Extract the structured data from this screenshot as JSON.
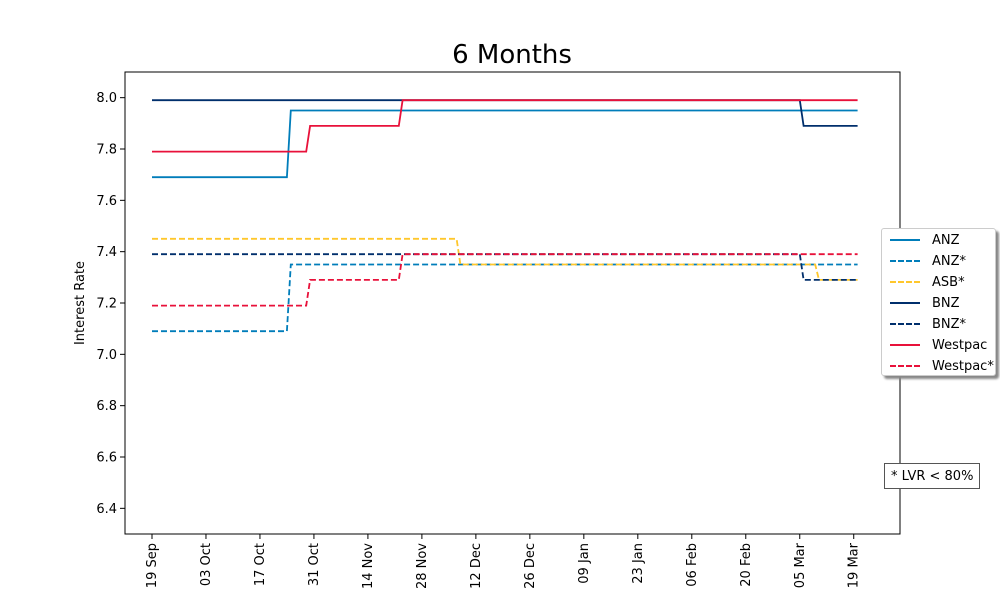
{
  "chart_data": {
    "type": "line",
    "title": "6 Months",
    "xlabel": "",
    "ylabel": "Interest Rate",
    "xlim": [
      "2023-09-12",
      "2024-03-31"
    ],
    "ylim": [
      6.3,
      8.1
    ],
    "yticks": [
      6.4,
      6.6,
      6.8,
      7.0,
      7.2,
      7.4,
      7.6,
      7.8,
      8.0
    ],
    "xticks": [
      {
        "date": "2023-09-19",
        "label": "19 Sep"
      },
      {
        "date": "2023-10-03",
        "label": "03 Oct"
      },
      {
        "date": "2023-10-17",
        "label": "17 Oct"
      },
      {
        "date": "2023-10-31",
        "label": "31 Oct"
      },
      {
        "date": "2023-11-14",
        "label": "14 Nov"
      },
      {
        "date": "2023-11-28",
        "label": "28 Nov"
      },
      {
        "date": "2023-12-12",
        "label": "12 Dec"
      },
      {
        "date": "2023-12-26",
        "label": "26 Dec"
      },
      {
        "date": "2024-01-09",
        "label": "09 Jan"
      },
      {
        "date": "2024-01-23",
        "label": "23 Jan"
      },
      {
        "date": "2024-02-06",
        "label": "06 Feb"
      },
      {
        "date": "2024-02-20",
        "label": "20 Feb"
      },
      {
        "date": "2024-03-05",
        "label": "05 Mar"
      },
      {
        "date": "2024-03-19",
        "label": "19 Mar"
      }
    ],
    "grid": false,
    "legend_position": "right",
    "series": [
      {
        "name": "ANZ",
        "color": "#007dba",
        "dash": false,
        "points": [
          [
            "2023-09-19",
            7.69
          ],
          [
            "2023-10-24",
            7.69
          ],
          [
            "2023-10-25",
            7.95
          ],
          [
            "2024-03-20",
            7.95
          ]
        ]
      },
      {
        "name": "ANZ*",
        "color": "#007dba",
        "dash": true,
        "points": [
          [
            "2023-09-19",
            7.09
          ],
          [
            "2023-10-24",
            7.09
          ],
          [
            "2023-10-25",
            7.35
          ],
          [
            "2024-03-20",
            7.35
          ]
        ]
      },
      {
        "name": "ASB*",
        "color": "#ffc72c",
        "dash": true,
        "points": [
          [
            "2023-09-19",
            7.45
          ],
          [
            "2023-12-07",
            7.45
          ],
          [
            "2023-12-08",
            7.35
          ],
          [
            "2024-03-09",
            7.35
          ],
          [
            "2024-03-10",
            7.29
          ],
          [
            "2024-03-20",
            7.29
          ]
        ]
      },
      {
        "name": "BNZ",
        "color": "#002f6c",
        "dash": false,
        "points": [
          [
            "2023-09-19",
            7.99
          ],
          [
            "2024-03-05",
            7.99
          ],
          [
            "2024-03-06",
            7.89
          ],
          [
            "2024-03-20",
            7.89
          ]
        ]
      },
      {
        "name": "BNZ*",
        "color": "#002f6c",
        "dash": true,
        "points": [
          [
            "2023-09-19",
            7.39
          ],
          [
            "2024-03-05",
            7.39
          ],
          [
            "2024-03-06",
            7.29
          ],
          [
            "2024-03-20",
            7.29
          ]
        ]
      },
      {
        "name": "Westpac",
        "color": "#e8113a",
        "dash": false,
        "points": [
          [
            "2023-09-19",
            7.79
          ],
          [
            "2023-10-29",
            7.79
          ],
          [
            "2023-10-30",
            7.89
          ],
          [
            "2023-11-22",
            7.89
          ],
          [
            "2023-11-23",
            7.99
          ],
          [
            "2024-03-20",
            7.99
          ]
        ]
      },
      {
        "name": "Westpac*",
        "color": "#e8113a",
        "dash": true,
        "points": [
          [
            "2023-09-19",
            7.19
          ],
          [
            "2023-10-29",
            7.19
          ],
          [
            "2023-10-30",
            7.29
          ],
          [
            "2023-11-22",
            7.29
          ],
          [
            "2023-11-23",
            7.39
          ],
          [
            "2024-03-20",
            7.39
          ]
        ]
      }
    ],
    "annotation": "* LVR < 80%"
  }
}
